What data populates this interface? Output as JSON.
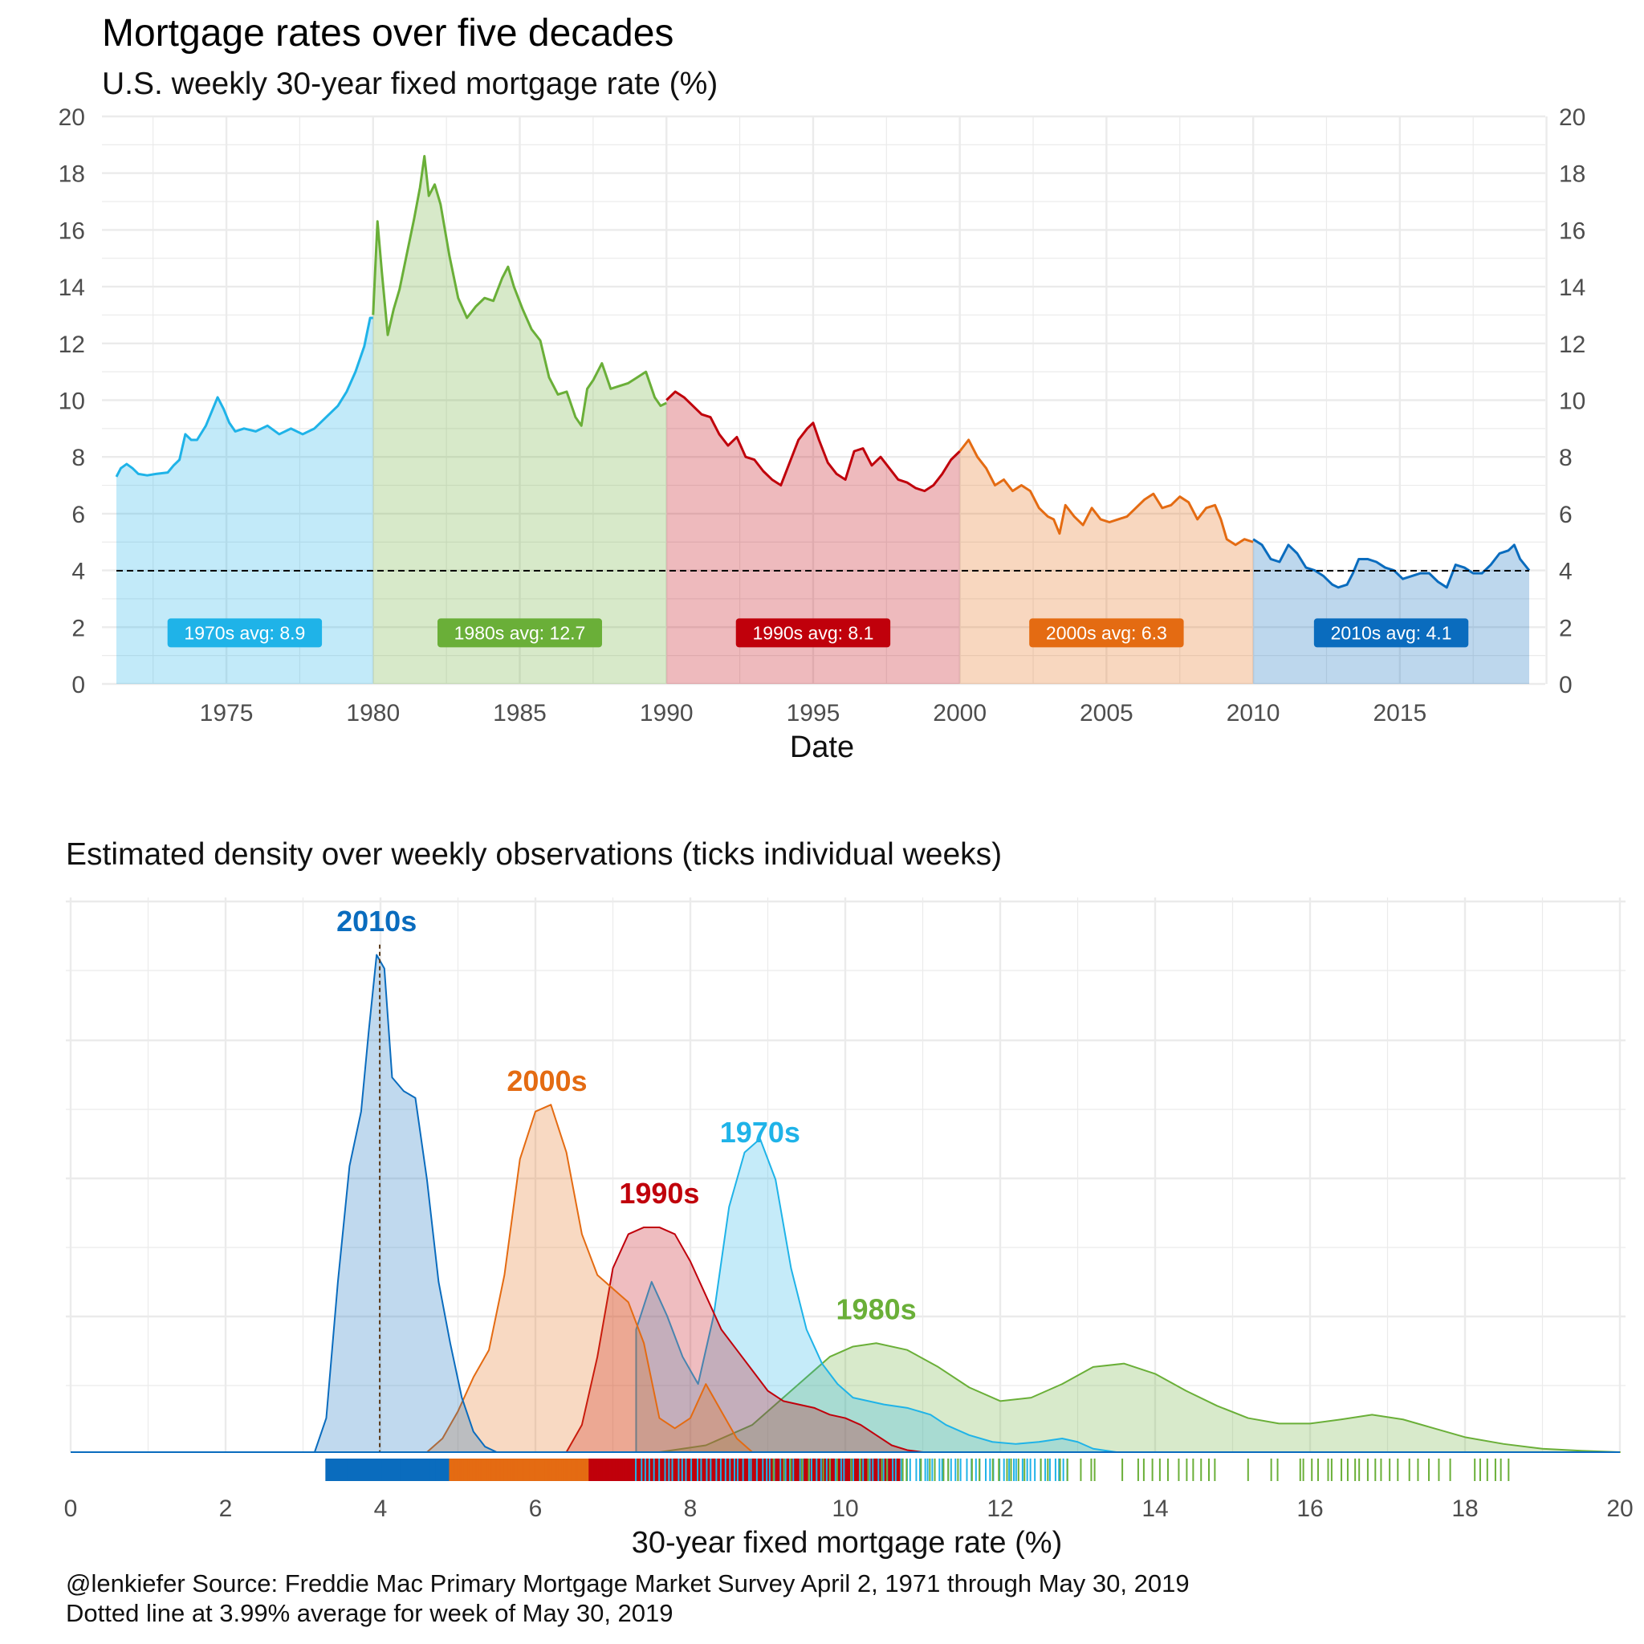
{
  "colors": {
    "d1970s": "#1fb3e8",
    "d1980s": "#6aaf38",
    "d1990s": "#c0000b",
    "d2000s": "#e46b12",
    "d2010s": "#0a6cbe",
    "grid": "#ebebeb",
    "reference_line": "#000000"
  },
  "caption": {
    "line1": "@lenkiefer Source: Freddie Mac Primary Mortgage Market Survey April 2, 1971 through May 30, 2019",
    "line2": "Dotted line at 3.99% average for week of May 30, 2019"
  },
  "chart_data": [
    {
      "type": "area",
      "title": "Mortgage rates over five decades",
      "subtitle": "U.S. weekly 30-year fixed mortgage rate (%)",
      "xlabel": "Date",
      "ylabel": "",
      "xlim": [
        1971.25,
        2019.41
      ],
      "ylim": [
        0,
        20
      ],
      "x_ticks": [
        1975,
        1980,
        1985,
        1990,
        1995,
        2000,
        2005,
        2010,
        2015
      ],
      "y_ticks": [
        0,
        2,
        4,
        6,
        8,
        10,
        12,
        14,
        16,
        18,
        20
      ],
      "y_axis_sides": [
        "left",
        "right"
      ],
      "reference_line": {
        "y": 3.99,
        "style": "dashed"
      },
      "grid": true,
      "series": [
        {
          "name": "1970s",
          "label": "1970s avg: 8.9",
          "avg": 8.9,
          "color_key": "d1970s",
          "x": [
            1971.25,
            1971.4,
            1971.6,
            1971.8,
            1972.0,
            1972.3,
            1972.6,
            1973.0,
            1973.2,
            1973.4,
            1973.6,
            1973.8,
            1974.0,
            1974.3,
            1974.5,
            1974.7,
            1974.9,
            1975.1,
            1975.3,
            1975.6,
            1976.0,
            1976.4,
            1976.8,
            1977.2,
            1977.6,
            1978.0,
            1978.4,
            1978.8,
            1979.1,
            1979.4,
            1979.7,
            1979.9,
            1980.0
          ],
          "y": [
            7.3,
            7.6,
            7.75,
            7.6,
            7.4,
            7.35,
            7.4,
            7.45,
            7.7,
            7.9,
            8.8,
            8.6,
            8.6,
            9.1,
            9.6,
            10.1,
            9.7,
            9.2,
            8.9,
            9.0,
            8.9,
            9.1,
            8.8,
            9.0,
            8.8,
            9.0,
            9.4,
            9.8,
            10.3,
            11.0,
            11.9,
            12.9,
            12.9
          ]
        },
        {
          "name": "1980s",
          "label": "1980s avg: 12.7",
          "avg": 12.7,
          "color_key": "d1980s",
          "x": [
            1980.0,
            1980.15,
            1980.3,
            1980.5,
            1980.7,
            1980.9,
            1981.1,
            1981.4,
            1981.6,
            1981.75,
            1981.9,
            1982.1,
            1982.3,
            1982.6,
            1982.9,
            1983.2,
            1983.5,
            1983.8,
            1984.1,
            1984.4,
            1984.6,
            1984.8,
            1985.1,
            1985.4,
            1985.7,
            1986.0,
            1986.3,
            1986.6,
            1986.9,
            1987.1,
            1987.3,
            1987.5,
            1987.8,
            1988.1,
            1988.4,
            1988.7,
            1989.0,
            1989.3,
            1989.6,
            1989.8,
            1990.0
          ],
          "y": [
            13.0,
            16.3,
            14.5,
            12.3,
            13.2,
            13.9,
            14.9,
            16.4,
            17.5,
            18.6,
            17.2,
            17.6,
            16.9,
            15.1,
            13.6,
            12.9,
            13.3,
            13.6,
            13.5,
            14.3,
            14.7,
            14.0,
            13.2,
            12.5,
            12.1,
            10.8,
            10.2,
            10.3,
            9.4,
            9.1,
            10.4,
            10.7,
            11.3,
            10.4,
            10.5,
            10.6,
            10.8,
            11.0,
            10.1,
            9.8,
            9.9
          ]
        },
        {
          "name": "1990s",
          "label": "1990s avg: 8.1",
          "avg": 8.1,
          "color_key": "d1990s",
          "x": [
            1990.0,
            1990.3,
            1990.6,
            1990.9,
            1991.2,
            1991.5,
            1991.8,
            1992.1,
            1992.4,
            1992.7,
            1993.0,
            1993.3,
            1993.6,
            1993.9,
            1994.2,
            1994.5,
            1994.8,
            1995.0,
            1995.2,
            1995.5,
            1995.8,
            1996.1,
            1996.4,
            1996.7,
            1997.0,
            1997.3,
            1997.6,
            1997.9,
            1998.2,
            1998.5,
            1998.8,
            1999.1,
            1999.4,
            1999.7,
            2000.0
          ],
          "y": [
            10.0,
            10.3,
            10.1,
            9.8,
            9.5,
            9.4,
            8.8,
            8.4,
            8.7,
            8.0,
            7.9,
            7.5,
            7.2,
            7.0,
            7.8,
            8.6,
            9.0,
            9.2,
            8.6,
            7.8,
            7.4,
            7.2,
            8.2,
            8.3,
            7.7,
            8.0,
            7.6,
            7.2,
            7.1,
            6.9,
            6.8,
            7.0,
            7.4,
            7.9,
            8.2
          ]
        },
        {
          "name": "2000s",
          "label": "2000s avg: 6.3",
          "avg": 6.3,
          "color_key": "d2000s",
          "x": [
            2000.0,
            2000.3,
            2000.6,
            2000.9,
            2001.2,
            2001.5,
            2001.8,
            2002.1,
            2002.4,
            2002.7,
            2003.0,
            2003.2,
            2003.4,
            2003.6,
            2003.9,
            2004.2,
            2004.5,
            2004.8,
            2005.1,
            2005.4,
            2005.7,
            2006.0,
            2006.3,
            2006.6,
            2006.9,
            2007.2,
            2007.5,
            2007.8,
            2008.1,
            2008.4,
            2008.7,
            2008.9,
            2009.1,
            2009.4,
            2009.7,
            2010.0
          ],
          "y": [
            8.2,
            8.6,
            8.0,
            7.6,
            7.0,
            7.2,
            6.8,
            7.0,
            6.8,
            6.2,
            5.9,
            5.8,
            5.3,
            6.3,
            5.9,
            5.6,
            6.2,
            5.8,
            5.7,
            5.8,
            5.9,
            6.2,
            6.5,
            6.7,
            6.2,
            6.3,
            6.6,
            6.4,
            5.8,
            6.2,
            6.3,
            5.8,
            5.1,
            4.9,
            5.1,
            5.0
          ]
        },
        {
          "name": "2010s",
          "label": "2010s avg: 4.1",
          "avg": 4.1,
          "color_key": "d2010s",
          "x": [
            2010.0,
            2010.3,
            2010.6,
            2010.9,
            2011.2,
            2011.5,
            2011.8,
            2012.1,
            2012.4,
            2012.7,
            2012.9,
            2013.2,
            2013.4,
            2013.6,
            2013.9,
            2014.2,
            2014.5,
            2014.8,
            2015.1,
            2015.4,
            2015.7,
            2016.0,
            2016.3,
            2016.6,
            2016.9,
            2017.2,
            2017.5,
            2017.8,
            2018.1,
            2018.4,
            2018.7,
            2018.9,
            2019.1,
            2019.41
          ],
          "y": [
            5.1,
            4.9,
            4.4,
            4.3,
            4.9,
            4.6,
            4.1,
            4.0,
            3.8,
            3.5,
            3.4,
            3.5,
            3.9,
            4.4,
            4.4,
            4.3,
            4.1,
            4.0,
            3.7,
            3.8,
            3.9,
            3.9,
            3.6,
            3.4,
            4.2,
            4.1,
            3.9,
            3.9,
            4.2,
            4.6,
            4.7,
            4.9,
            4.4,
            4.0
          ]
        }
      ]
    },
    {
      "type": "area",
      "title": "Estimated density over weekly observations (ticks individual weeks)",
      "xlabel": "30-year fixed mortgage rate (%)",
      "ylabel": "",
      "xlim": [
        0,
        20
      ],
      "ylim": [
        0,
        0.74
      ],
      "x_ticks": [
        0,
        2,
        4,
        6,
        8,
        10,
        12,
        14,
        16,
        18,
        20
      ],
      "y_ticks_labeled": false,
      "reference_line": {
        "x": 3.99,
        "style": "dotted"
      },
      "grid": true,
      "series": [
        {
          "name": "1970s",
          "label_peak": [
            8.9,
            0.41
          ],
          "color_key": "d1970s",
          "x": [
            7.3,
            7.5,
            7.7,
            7.9,
            8.1,
            8.3,
            8.5,
            8.7,
            8.9,
            9.1,
            9.3,
            9.5,
            9.7,
            9.9,
            10.1,
            10.3,
            10.5,
            10.8,
            11.1,
            11.3,
            11.6,
            11.9,
            12.2,
            12.5,
            12.8,
            13.0,
            13.2,
            13.5
          ],
          "y": [
            0.18,
            0.25,
            0.2,
            0.14,
            0.1,
            0.2,
            0.36,
            0.44,
            0.46,
            0.4,
            0.27,
            0.18,
            0.13,
            0.1,
            0.08,
            0.075,
            0.07,
            0.065,
            0.055,
            0.04,
            0.025,
            0.015,
            0.012,
            0.015,
            0.02,
            0.015,
            0.005,
            0.0
          ]
        },
        {
          "name": "1980s",
          "label_peak": [
            10.4,
            0.17
          ],
          "color_key": "d1980s",
          "x": [
            7.6,
            8.2,
            8.8,
            9.4,
            9.8,
            10.1,
            10.4,
            10.8,
            11.2,
            11.6,
            12.0,
            12.4,
            12.8,
            13.2,
            13.6,
            14.0,
            14.4,
            14.8,
            15.2,
            15.6,
            16.0,
            16.4,
            16.8,
            17.2,
            17.6,
            18.0,
            18.5,
            19.0,
            19.5,
            20.0
          ],
          "y": [
            0.0,
            0.01,
            0.04,
            0.1,
            0.14,
            0.155,
            0.16,
            0.15,
            0.125,
            0.095,
            0.075,
            0.08,
            0.1,
            0.125,
            0.13,
            0.115,
            0.09,
            0.068,
            0.05,
            0.042,
            0.042,
            0.048,
            0.055,
            0.048,
            0.035,
            0.022,
            0.012,
            0.005,
            0.002,
            0.0
          ]
        },
        {
          "name": "1990s",
          "label_peak": [
            7.6,
            0.33
          ],
          "color_key": "d1990s",
          "x": [
            6.4,
            6.6,
            6.8,
            7.0,
            7.2,
            7.4,
            7.6,
            7.8,
            8.0,
            8.2,
            8.4,
            8.6,
            8.8,
            9.0,
            9.2,
            9.4,
            9.6,
            9.8,
            10.0,
            10.2,
            10.4,
            10.6,
            10.8,
            11.0
          ],
          "y": [
            0.0,
            0.04,
            0.14,
            0.27,
            0.32,
            0.33,
            0.33,
            0.32,
            0.28,
            0.23,
            0.18,
            0.15,
            0.12,
            0.09,
            0.075,
            0.07,
            0.065,
            0.055,
            0.05,
            0.04,
            0.025,
            0.01,
            0.003,
            0.0
          ]
        },
        {
          "name": "2000s",
          "label_peak": [
            6.1,
            0.51
          ],
          "color_key": "d2000s",
          "x": [
            4.6,
            4.8,
            5.0,
            5.2,
            5.4,
            5.6,
            5.8,
            6.0,
            6.2,
            6.4,
            6.6,
            6.8,
            7.0,
            7.2,
            7.4,
            7.6,
            7.8,
            8.0,
            8.2,
            8.4,
            8.6,
            8.8
          ],
          "y": [
            0.0,
            0.02,
            0.06,
            0.11,
            0.15,
            0.26,
            0.43,
            0.5,
            0.51,
            0.44,
            0.32,
            0.26,
            0.24,
            0.22,
            0.16,
            0.05,
            0.035,
            0.05,
            0.1,
            0.06,
            0.02,
            0.0
          ]
        },
        {
          "name": "2010s",
          "label_peak": [
            4.0,
            0.74
          ],
          "color_key": "d2010s",
          "x": [
            3.15,
            3.3,
            3.45,
            3.6,
            3.75,
            3.85,
            3.95,
            4.05,
            4.15,
            4.3,
            4.45,
            4.6,
            4.75,
            4.9,
            5.05,
            5.2,
            5.35,
            5.5
          ],
          "y": [
            0.0,
            0.05,
            0.25,
            0.42,
            0.5,
            0.62,
            0.73,
            0.71,
            0.55,
            0.53,
            0.52,
            0.4,
            0.25,
            0.16,
            0.08,
            0.03,
            0.008,
            0.0
          ]
        }
      ],
      "rug": [
        {
          "series": "2010s",
          "from": 3.3,
          "to": 5.1,
          "density": "dense"
        },
        {
          "series": "2000s",
          "from": 4.9,
          "to": 8.7,
          "density": "dense"
        },
        {
          "series": "1990s",
          "from": 6.7,
          "to": 10.7,
          "density": "dense"
        },
        {
          "series": "1970s",
          "from": 7.3,
          "to": 12.9,
          "density": "medium"
        },
        {
          "series": "1980s",
          "from": 9.1,
          "to": 18.6,
          "density": "sparse"
        }
      ]
    }
  ]
}
